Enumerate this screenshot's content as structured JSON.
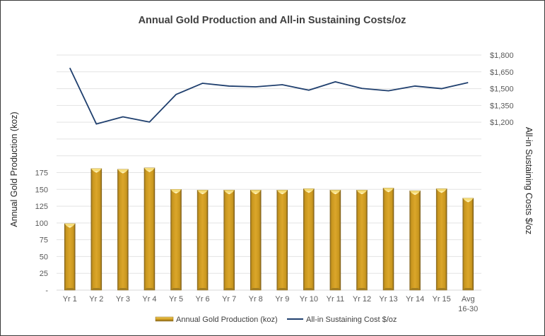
{
  "chart_data": {
    "type": "bar",
    "title": "Annual Gold Production and All-in Sustaining Costs/oz",
    "categories": [
      "Yr 1",
      "Yr 2",
      "Yr 3",
      "Yr 4",
      "Yr 5",
      "Yr 6",
      "Yr 7",
      "Yr 8",
      "Yr 9",
      "Yr 10",
      "Yr 11",
      "Yr 12",
      "Yr 13",
      "Yr 14",
      "Yr 15",
      "Avg\n16-30"
    ],
    "series": [
      {
        "name": "Annual Gold Production (koz)",
        "type": "bar",
        "axis": "left",
        "color": "#D4A020",
        "values": [
          99,
          181,
          180,
          182,
          150,
          149,
          149,
          149,
          149,
          151,
          149,
          149,
          152,
          148,
          151,
          137
        ]
      },
      {
        "name": "All-in Sustaining Cost $/oz",
        "type": "line",
        "axis": "right",
        "color": "#1F3F6E",
        "values": [
          1685,
          1184,
          1248,
          1202,
          1448,
          1548,
          1523,
          1516,
          1535,
          1486,
          1561,
          1502,
          1481,
          1523,
          1500,
          1554
        ]
      }
    ],
    "ylabel": "Annual Gold Production (koz)",
    "y2label": "All-in Sustaining Costs $/oz",
    "xlabel": "",
    "ylim": [
      0,
      350
    ],
    "y_ticks": [
      0,
      25,
      50,
      75,
      100,
      125,
      150,
      175
    ],
    "y_tick_labels": [
      "-",
      "25",
      "50",
      "75",
      "100",
      "125",
      "150",
      "175"
    ],
    "y2lim": [
      -300,
      1800
    ],
    "y2_ticks": [
      1200,
      1350,
      1500,
      1650,
      1800
    ],
    "y2_tick_labels": [
      "$1,200",
      "$1,350",
      "$1,500",
      "$1,650",
      "$1,800"
    ],
    "grid": true,
    "legend_position": "bottom"
  }
}
